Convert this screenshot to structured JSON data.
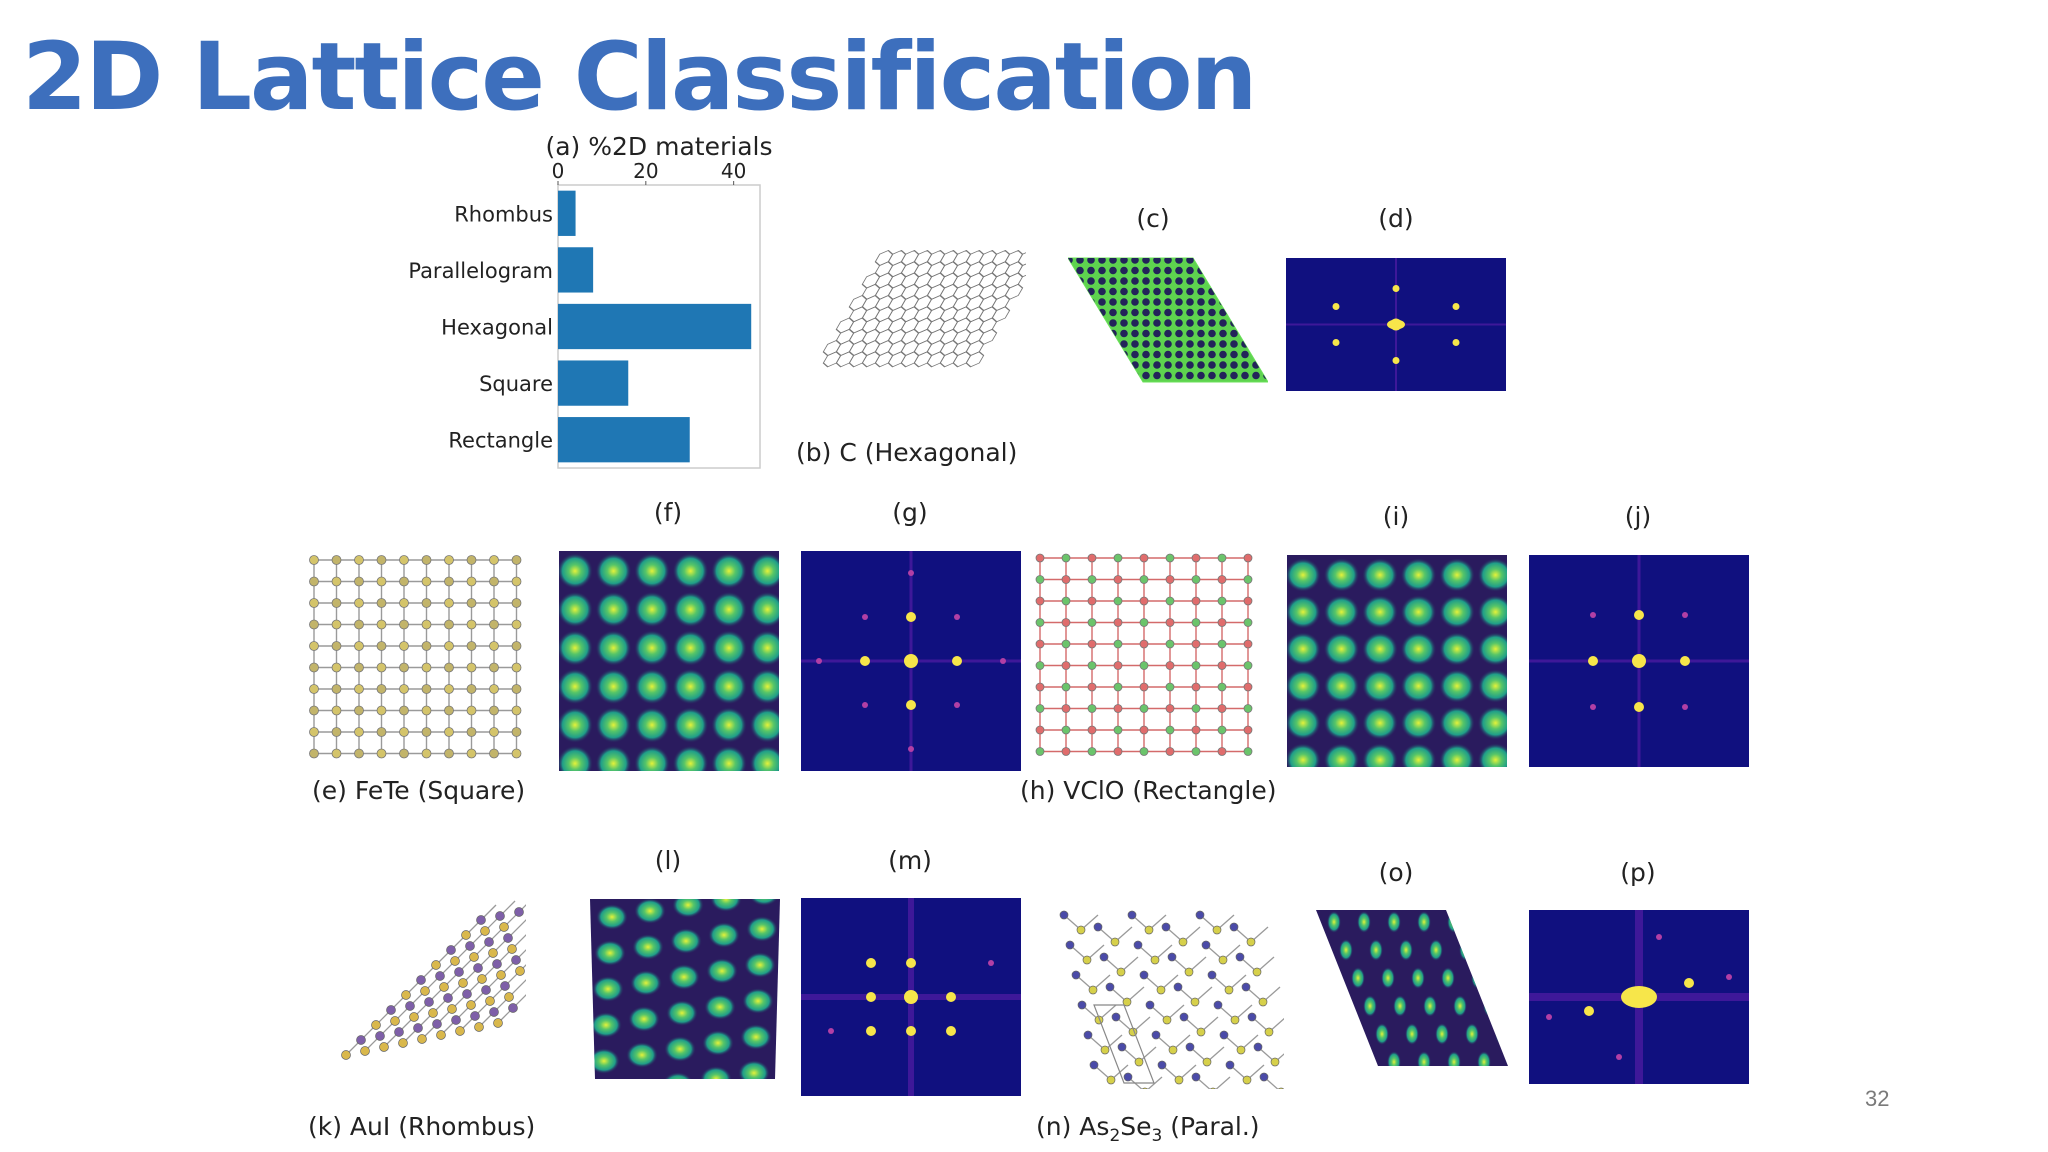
{
  "slide": {
    "title": "2D Lattice Classification",
    "page_number": "32"
  },
  "chart_data": {
    "type": "bar",
    "orientation": "horizontal",
    "title": "(a) %2D materials",
    "categories": [
      "Rhombus",
      "Parallelogram",
      "Hexagonal",
      "Square",
      "Rectangle"
    ],
    "values": [
      4,
      8,
      44,
      16,
      30
    ],
    "xticks": [
      "0",
      "20",
      "40"
    ],
    "xlim": [
      0,
      46
    ],
    "xaxis_position": "top",
    "bar_color": "#1f77b4",
    "grid": false
  },
  "captions": {
    "b": "(b) C (Hexagonal)",
    "e": "(e) FeTe (Square)",
    "h": "(h) VClO (Rectangle)",
    "k": "(k) AuI (Rhombus)",
    "n_prefix": "(n) As",
    "n_sub1": "2",
    "n_mid": "Se",
    "n_sub2": "3",
    "n_suffix": " (Paral.)"
  },
  "panel_labels": {
    "c": "(c)",
    "d": "(d)",
    "f": "(f)",
    "g": "(g)",
    "i": "(i)",
    "j": "(j)",
    "l": "(l)",
    "m": "(m)",
    "o": "(o)",
    "p": "(p)"
  },
  "colors": {
    "title": "#3d6fbd",
    "bar": "#1f77b4",
    "viridis_dark": "#2b1a5c",
    "viridis_light": "#b7e334",
    "plasma_bg": "#10107f",
    "plasma_peak": "#f7e64a"
  }
}
